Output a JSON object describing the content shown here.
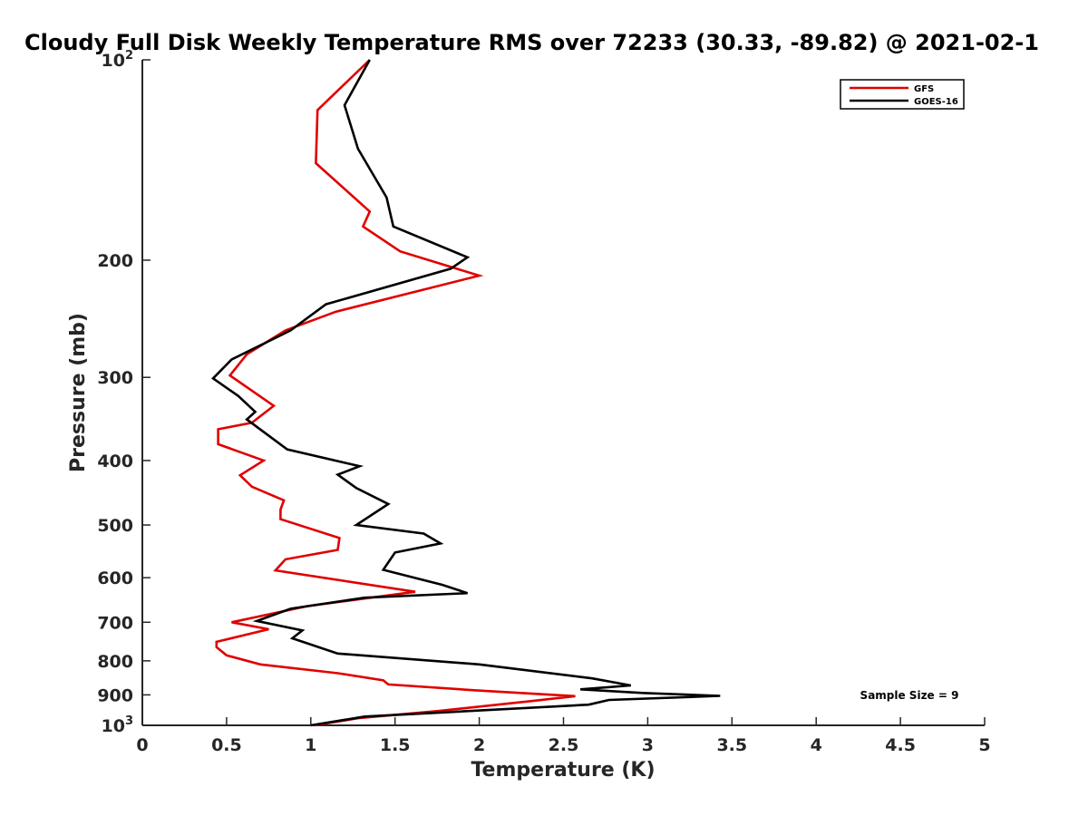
{
  "chart_data": {
    "type": "line",
    "title": "Cloudy Full Disk Weekly Temperature RMS over 72233 (30.33, -89.82) @ 2021-02-1",
    "xlabel": "Temperature (K)",
    "ylabel": "Pressure (mb)",
    "xlim": [
      0,
      5
    ],
    "ylim": [
      100,
      1000
    ],
    "y_scale": "log",
    "y_reversed": true,
    "grid": false,
    "legend_position": "top-right",
    "x_ticks": [
      "0",
      "0.5",
      "1",
      "1.5",
      "2",
      "2.5",
      "3",
      "3.5",
      "4",
      "4.5",
      "5"
    ],
    "y_ticks": [
      {
        "value": 100,
        "base": "10",
        "exp": "2"
      },
      {
        "value": 200,
        "label": "200"
      },
      {
        "value": 300,
        "label": "300"
      },
      {
        "value": 400,
        "label": "400"
      },
      {
        "value": 500,
        "label": "500"
      },
      {
        "value": 600,
        "label": "600"
      },
      {
        "value": 700,
        "label": "700"
      },
      {
        "value": 800,
        "label": "800"
      },
      {
        "value": 900,
        "label": "900"
      },
      {
        "value": 1000,
        "base": "10",
        "exp": "3"
      }
    ],
    "series": [
      {
        "name": "GFS",
        "color": "#e00000",
        "points": [
          [
            1.35,
            100
          ],
          [
            1.04,
            119
          ],
          [
            1.03,
            143
          ],
          [
            1.35,
            169
          ],
          [
            1.31,
            178
          ],
          [
            1.53,
            194
          ],
          [
            2.0,
            211
          ],
          [
            1.15,
            239
          ],
          [
            0.85,
            255
          ],
          [
            0.62,
            277
          ],
          [
            0.52,
            298
          ],
          [
            0.78,
            331
          ],
          [
            0.65,
            351
          ],
          [
            0.45,
            359
          ],
          [
            0.45,
            378
          ],
          [
            0.72,
            400
          ],
          [
            0.58,
            421
          ],
          [
            0.65,
            438
          ],
          [
            0.84,
            459
          ],
          [
            0.82,
            474
          ],
          [
            0.82,
            490
          ],
          [
            1.17,
            523
          ],
          [
            1.16,
            545
          ],
          [
            0.85,
            563
          ],
          [
            0.79,
            585
          ],
          [
            1.62,
            630
          ],
          [
            0.98,
            662
          ],
          [
            0.53,
            700
          ],
          [
            0.75,
            717
          ],
          [
            0.44,
            749
          ],
          [
            0.44,
            763
          ],
          [
            0.5,
            785
          ],
          [
            0.7,
            810
          ],
          [
            1.16,
            835
          ],
          [
            1.43,
            856
          ],
          [
            1.46,
            868
          ],
          [
            1.98,
            886
          ],
          [
            2.57,
            904
          ],
          [
            2.3,
            920
          ],
          [
            1.75,
            952
          ],
          [
            1.29,
            975
          ],
          [
            1.02,
            1000
          ]
        ]
      },
      {
        "name": "GOES-16",
        "color": "#000000",
        "points": [
          [
            1.35,
            100
          ],
          [
            1.2,
            117
          ],
          [
            1.28,
            136
          ],
          [
            1.45,
            161
          ],
          [
            1.49,
            178
          ],
          [
            1.93,
            198
          ],
          [
            1.83,
            206
          ],
          [
            1.09,
            233
          ],
          [
            0.88,
            255
          ],
          [
            0.53,
            282
          ],
          [
            0.42,
            301
          ],
          [
            0.57,
            320
          ],
          [
            0.67,
            338
          ],
          [
            0.62,
            347
          ],
          [
            0.86,
            385
          ],
          [
            1.29,
            408
          ],
          [
            1.16,
            420
          ],
          [
            1.27,
            440
          ],
          [
            1.46,
            465
          ],
          [
            1.27,
            500
          ],
          [
            1.67,
            515
          ],
          [
            1.77,
            533
          ],
          [
            1.5,
            550
          ],
          [
            1.43,
            584
          ],
          [
            1.78,
            615
          ],
          [
            1.93,
            633
          ],
          [
            1.32,
            643
          ],
          [
            0.88,
            668
          ],
          [
            0.68,
            697
          ],
          [
            0.95,
            720
          ],
          [
            0.89,
            740
          ],
          [
            1.16,
            780
          ],
          [
            2.0,
            810
          ],
          [
            2.67,
            850
          ],
          [
            2.9,
            871
          ],
          [
            2.6,
            883
          ],
          [
            2.97,
            894
          ],
          [
            3.43,
            903
          ],
          [
            2.77,
            916
          ],
          [
            2.65,
            931
          ],
          [
            1.32,
            970
          ],
          [
            1.0,
            1000
          ]
        ]
      }
    ],
    "annotations": [
      "Sample Size = 9"
    ]
  }
}
